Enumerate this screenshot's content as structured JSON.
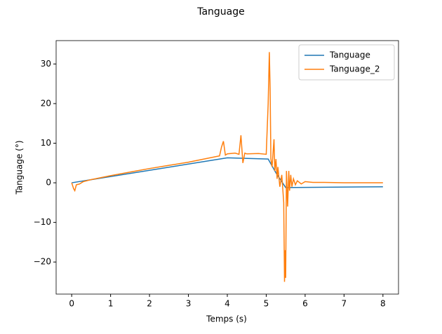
{
  "chart_data": {
    "type": "line",
    "title": "Tanguage",
    "xlabel": "Temps (s)",
    "ylabel": "Tanguage (°)",
    "xlim": [
      -0.4,
      8.4
    ],
    "ylim": [
      -28.1,
      35.9
    ],
    "xticks": [
      0,
      1,
      2,
      3,
      4,
      5,
      6,
      7,
      8
    ],
    "yticks": [
      {
        "value": -20,
        "label": "−20"
      },
      {
        "value": -10,
        "label": "−10"
      },
      0,
      10,
      20,
      30
    ],
    "legend": "upper right",
    "series": [
      {
        "name": "Tanguage",
        "color": "#1f77b4",
        "x": [
          0,
          4,
          5.05,
          5.25,
          5.5,
          8
        ],
        "values": [
          0,
          6.3,
          6,
          2.5,
          -1.2,
          -1
        ]
      },
      {
        "name": "Tanguage_2",
        "color": "#ff7f0e",
        "x": [
          0,
          0.05,
          0.08,
          0.12,
          0.2,
          0.3,
          0.5,
          1,
          1.5,
          2,
          2.5,
          3,
          3.5,
          3.8,
          3.85,
          3.9,
          3.95,
          4.0,
          4.2,
          4.3,
          4.35,
          4.4,
          4.45,
          4.5,
          4.8,
          5.0,
          5.05,
          5.08,
          5.1,
          5.12,
          5.15,
          5.2,
          5.22,
          5.25,
          5.28,
          5.3,
          5.35,
          5.4,
          5.45,
          5.47,
          5.49,
          5.5,
          5.52,
          5.55,
          5.58,
          5.6,
          5.63,
          5.66,
          5.7,
          5.75,
          5.8,
          5.9,
          6.0,
          6.2,
          6.5,
          7,
          8
        ],
        "values": [
          0,
          -1.5,
          -2,
          -0.5,
          -0.3,
          0.3,
          0.8,
          1.8,
          2.7,
          3.6,
          4.4,
          5.2,
          6.2,
          6.8,
          9,
          10.5,
          7,
          7.3,
          7.5,
          7.2,
          12,
          5,
          7.5,
          7.3,
          7.4,
          7.2,
          20,
          33,
          24,
          6,
          4,
          11,
          3,
          6,
          1,
          4,
          -1,
          2,
          -5,
          -25,
          -17,
          -24,
          3,
          -6,
          3,
          -2,
          2,
          -1,
          1,
          -0.5,
          0.5,
          -0.3,
          0.3,
          0.1,
          0.1,
          0,
          0
        ]
      }
    ]
  }
}
